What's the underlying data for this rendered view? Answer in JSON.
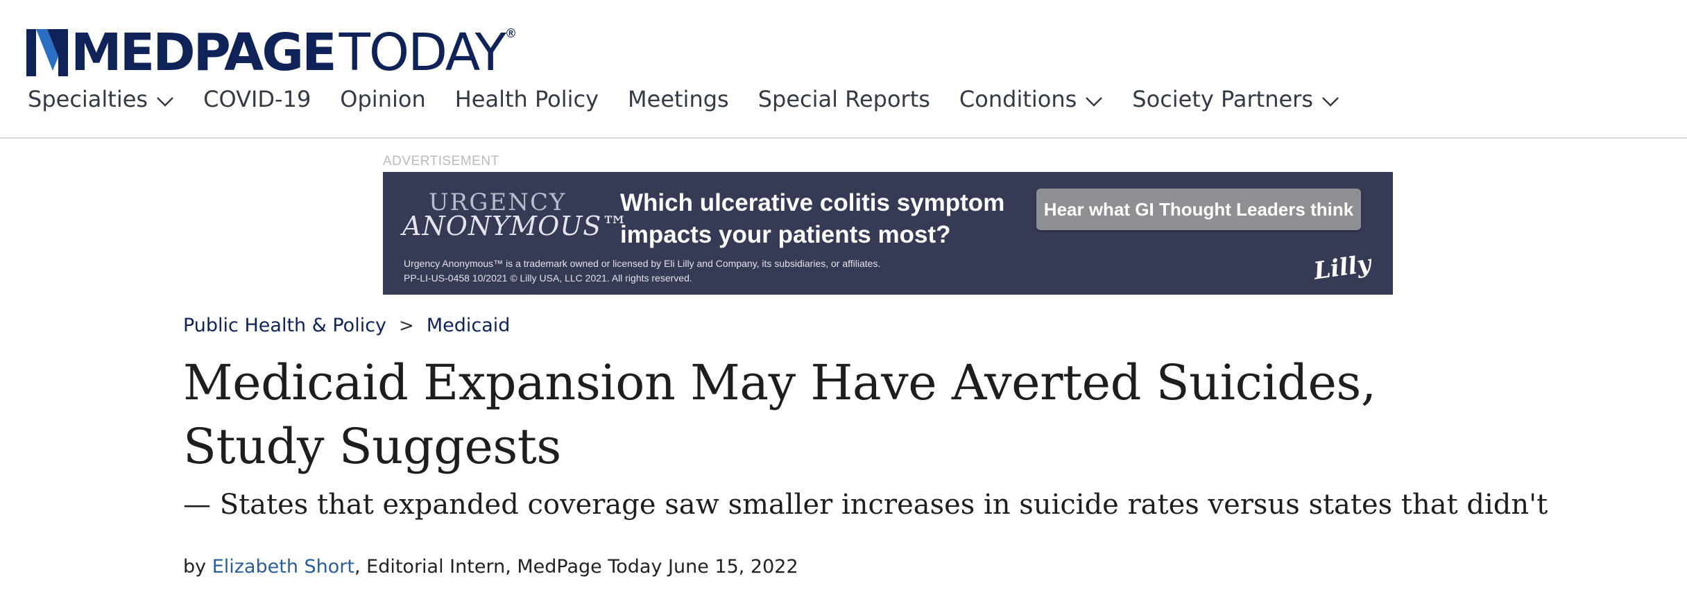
{
  "brand": {
    "bold": "MEDPAGE",
    "light": "TODAY",
    "reg_mark": "®",
    "primary_color": "#0f2359",
    "accent_color": "#2a6fc4"
  },
  "nav": {
    "items": [
      {
        "label": "Specialties",
        "dropdown": true
      },
      {
        "label": "COVID-19",
        "dropdown": false
      },
      {
        "label": "Opinion",
        "dropdown": false
      },
      {
        "label": "Health Policy",
        "dropdown": false
      },
      {
        "label": "Meetings",
        "dropdown": false
      },
      {
        "label": "Special Reports",
        "dropdown": false
      },
      {
        "label": "Conditions",
        "dropdown": true
      },
      {
        "label": "Society Partners",
        "dropdown": true
      }
    ]
  },
  "ad": {
    "label": "ADVERTISEMENT",
    "brand_top": "URGENCY",
    "brand_bottom": "ANONYMOUS™",
    "headline": "Which ulcerative colitis symptom impacts your patients most?",
    "cta": "Hear what GI Thought Leaders think",
    "fine_print_1": "Urgency Anonymous™ is a trademark owned or licensed by Eli Lilly and Company, its subsidiaries, or affiliates.",
    "fine_print_2": "PP-LI-US-0458 10/2021 © Lilly USA, LLC 2021. All rights reserved.",
    "sponsor": "Lilly",
    "background": "#373a55"
  },
  "article": {
    "breadcrumb": {
      "items": [
        "Public Health & Policy",
        "Medicaid"
      ],
      "separator": ">"
    },
    "title": "Medicaid Expansion May Have Averted Suicides, Study Suggests",
    "dek": "— States that expanded coverage saw smaller increases in suicide rates versus states that didn't",
    "byline": {
      "prefix": "by ",
      "author": "Elizabeth Short",
      "role": ", Editorial Intern, MedPage Today ",
      "date": "June 15, 2022"
    }
  }
}
